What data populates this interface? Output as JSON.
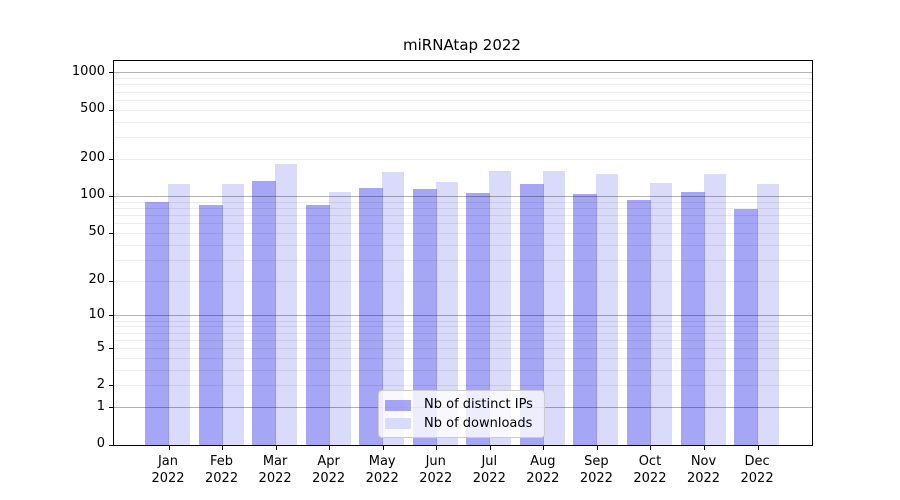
{
  "chart_data": {
    "type": "bar",
    "title": "miRNAtap 2022",
    "categories": [
      "Jan",
      "Feb",
      "Mar",
      "Apr",
      "May",
      "Jun",
      "Jul",
      "Aug",
      "Sep",
      "Oct",
      "Nov",
      "Dec"
    ],
    "year_label": "2022",
    "series": [
      {
        "name": "Nb of distinct IPs",
        "color": "rgba(120,120,242,0.66)",
        "values": [
          91,
          86,
          134,
          86,
          118,
          115,
          107,
          127,
          105,
          93,
          109,
          79
        ]
      },
      {
        "name": "Nb of downloads",
        "color": "#dadafa",
        "values": [
          126,
          126,
          184,
          109,
          159,
          132,
          161,
          161,
          151,
          129,
          151,
          126
        ]
      }
    ],
    "xlabel": "",
    "ylabel": "",
    "yscale": "log1p",
    "yticks": [
      0,
      1,
      2,
      5,
      10,
      20,
      50,
      100,
      200,
      500,
      1000
    ],
    "ylim": [
      0,
      1250
    ],
    "grid": true,
    "grid_major_color": "rgba(0,0,0,0.30)",
    "grid_minor_color": "rgba(0,0,0,0.075)",
    "legend_position": "lower center"
  }
}
